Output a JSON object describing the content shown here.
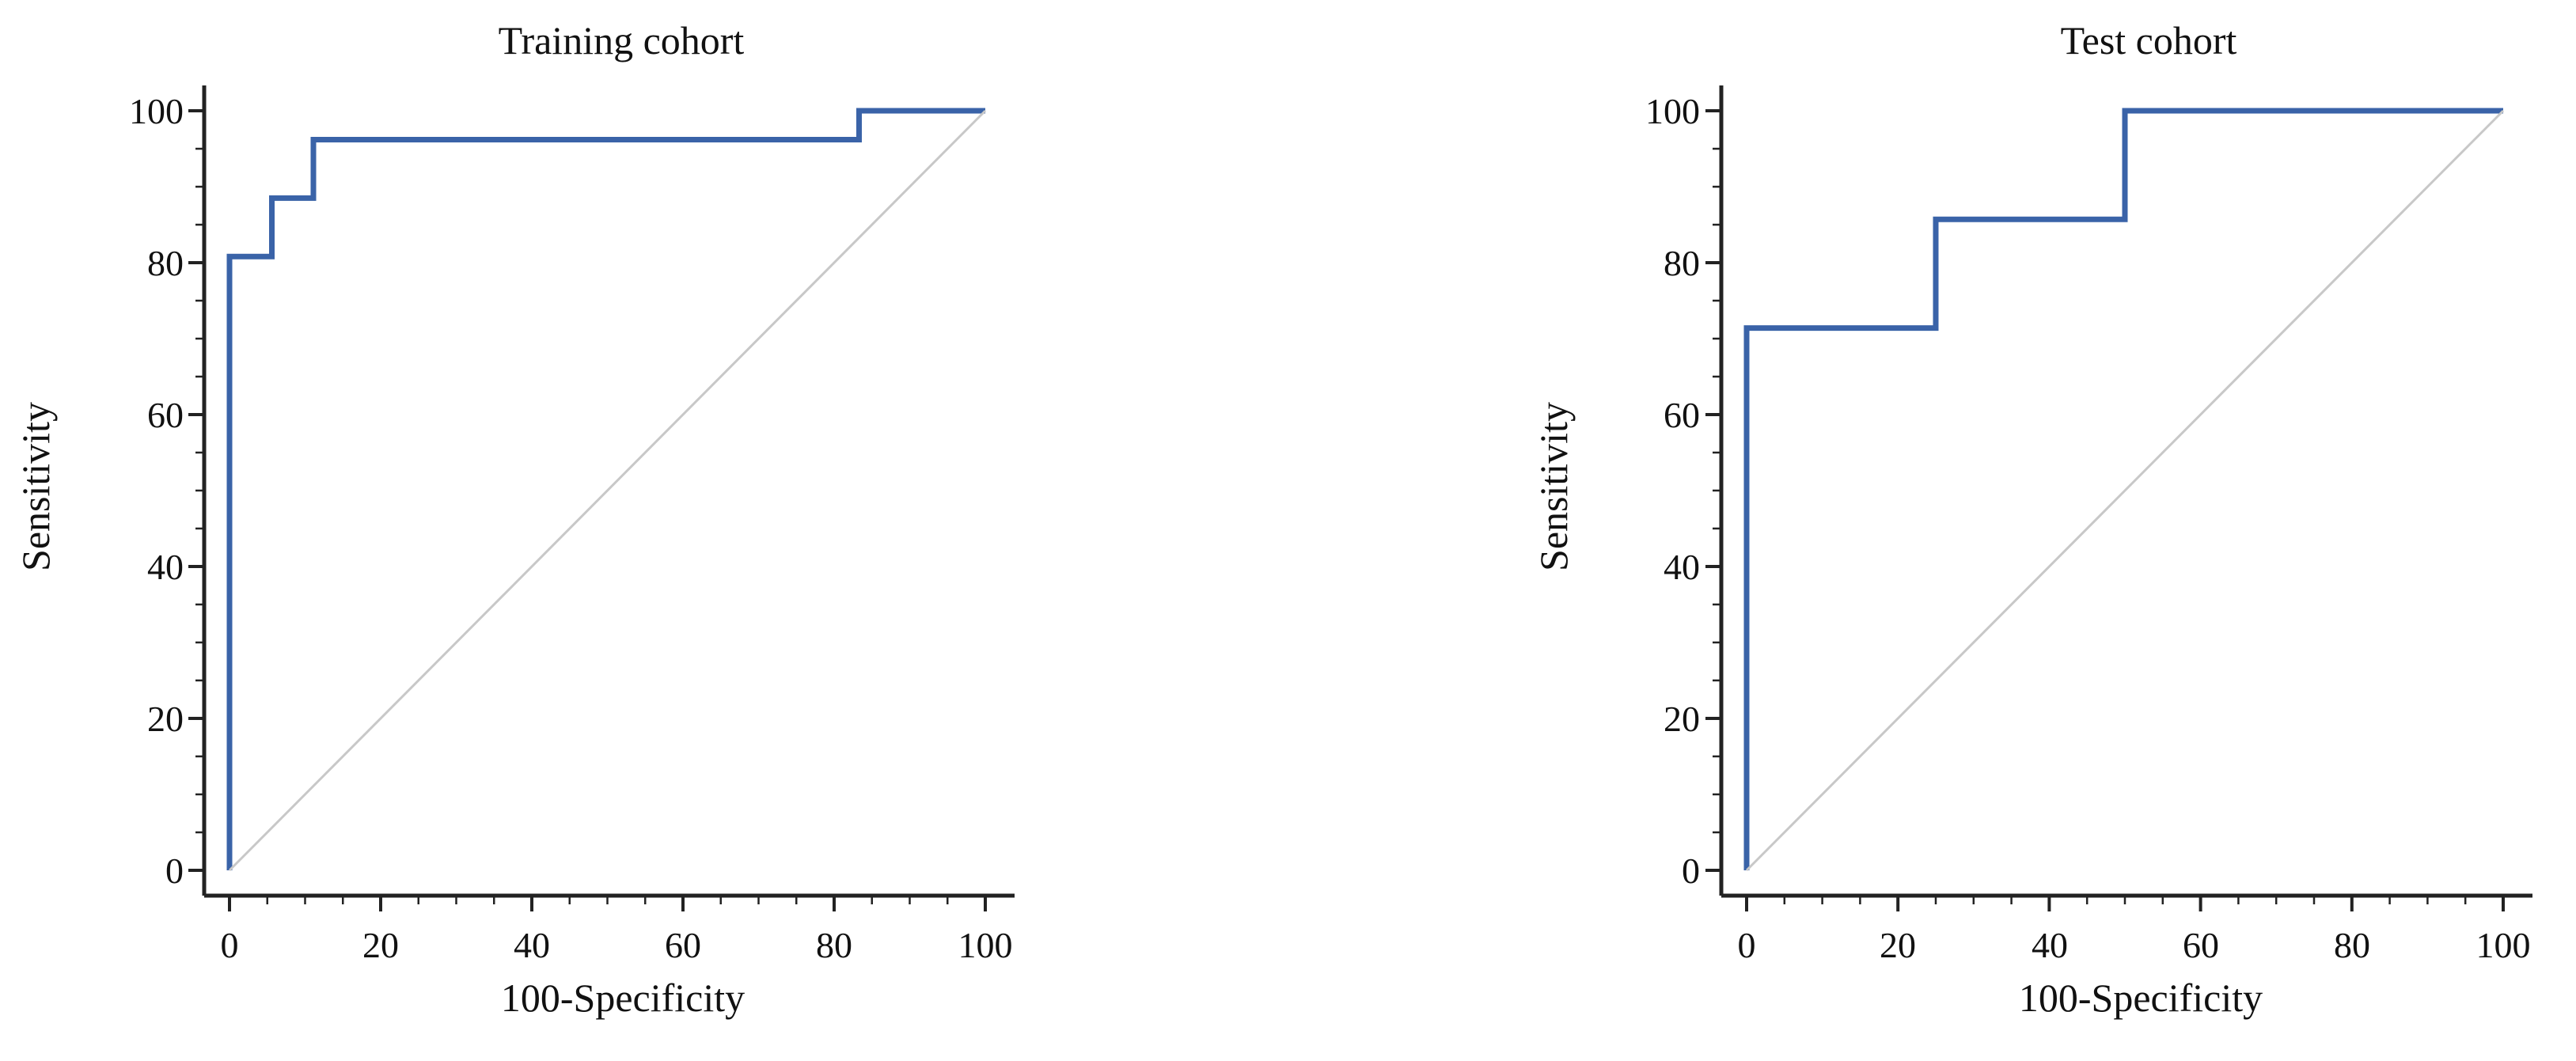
{
  "colors": {
    "roc_line": "#3a63a8",
    "reference_line": "#c8c8c8",
    "axis": "#222222"
  },
  "chart_data": [
    {
      "type": "line",
      "title": "Training cohort",
      "xlabel": "100-Specificity",
      "ylabel": "Sensitivity",
      "xlim": [
        0,
        100
      ],
      "ylim": [
        0,
        100
      ],
      "xticks": [
        "0",
        "20",
        "40",
        "60",
        "80",
        "100"
      ],
      "yticks": [
        "0",
        "20",
        "40",
        "60",
        "80",
        "100"
      ],
      "grid": false,
      "series": [
        {
          "kind": "roc-step",
          "points": [
            [
              0,
              0
            ],
            [
              0,
              80.8
            ],
            [
              5.6,
              80.8
            ],
            [
              5.6,
              88.5
            ],
            [
              11.1,
              88.5
            ],
            [
              11.1,
              96.2
            ],
            [
              83.3,
              96.2
            ],
            [
              83.3,
              100
            ],
            [
              100,
              100
            ]
          ]
        },
        {
          "kind": "reference-diagonal",
          "points": [
            [
              0,
              0
            ],
            [
              100,
              100
            ]
          ]
        }
      ]
    },
    {
      "type": "line",
      "title": "Test cohort",
      "xlabel": "100-Specificity",
      "ylabel": "Sensitivity",
      "xlim": [
        0,
        100
      ],
      "ylim": [
        0,
        100
      ],
      "xticks": [
        "0",
        "20",
        "40",
        "60",
        "80",
        "100"
      ],
      "yticks": [
        "0",
        "20",
        "40",
        "60",
        "80",
        "100"
      ],
      "grid": false,
      "series": [
        {
          "kind": "roc-step",
          "points": [
            [
              0,
              0
            ],
            [
              0,
              71.4
            ],
            [
              25,
              71.4
            ],
            [
              25,
              85.7
            ],
            [
              50,
              85.7
            ],
            [
              50,
              100
            ],
            [
              100,
              100
            ]
          ]
        },
        {
          "kind": "reference-diagonal",
          "points": [
            [
              0,
              0
            ],
            [
              100,
              100
            ]
          ]
        }
      ]
    }
  ]
}
